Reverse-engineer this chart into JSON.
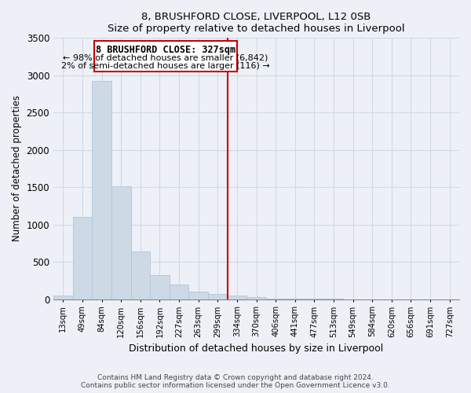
{
  "title": "8, BRUSHFORD CLOSE, LIVERPOOL, L12 0SB",
  "subtitle": "Size of property relative to detached houses in Liverpool",
  "xlabel": "Distribution of detached houses by size in Liverpool",
  "ylabel": "Number of detached properties",
  "bar_color": "#cdd9e5",
  "bar_edge_color": "#b0c4d8",
  "bin_labels": [
    "13sqm",
    "49sqm",
    "84sqm",
    "120sqm",
    "156sqm",
    "192sqm",
    "227sqm",
    "263sqm",
    "299sqm",
    "334sqm",
    "370sqm",
    "406sqm",
    "441sqm",
    "477sqm",
    "513sqm",
    "549sqm",
    "584sqm",
    "620sqm",
    "656sqm",
    "691sqm",
    "727sqm"
  ],
  "bar_heights": [
    45,
    1100,
    2920,
    1510,
    640,
    325,
    195,
    100,
    65,
    50,
    25,
    12,
    8,
    4,
    2,
    1,
    1,
    0,
    0,
    0,
    0
  ],
  "ylim": [
    0,
    3500
  ],
  "yticks": [
    0,
    500,
    1000,
    1500,
    2000,
    2500,
    3000,
    3500
  ],
  "vline_x_index": 9,
  "vline_color": "#cc0000",
  "annotation_title": "8 BRUSHFORD CLOSE: 327sqm",
  "annotation_line1": "← 98% of detached houses are smaller (6,842)",
  "annotation_line2": "2% of semi-detached houses are larger (116) →",
  "annotation_box_color": "#ffffff",
  "annotation_box_edge": "#cc0000",
  "footer_line1": "Contains HM Land Registry data © Crown copyright and database right 2024.",
  "footer_line2": "Contains public sector information licensed under the Open Government Licence v3.0.",
  "bg_color": "#edf1f7",
  "grid_color": "#d0d8e8"
}
